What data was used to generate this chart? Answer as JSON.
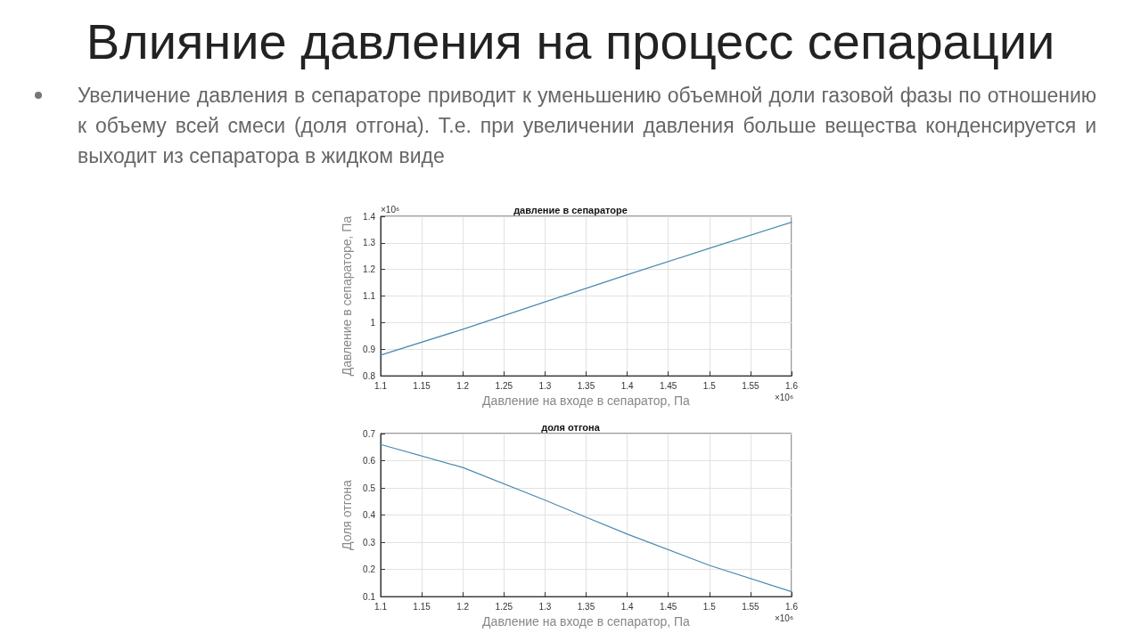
{
  "chart_data": [
    {
      "type": "other",
      "title": "Влияние давления на процесс сепарации",
      "subtitle": "Увеличение давления в сепараторе приводит к уменьшению объемной доли газовой фазы по отношению к объему всей смеси (доля отгона). Т.е. при увеличении давления больше вещества конденсируется и выходит из сепаратора в жидком виде"
    },
    {
      "type": "line",
      "title": "давление в сепараторе",
      "xlabel": "Давление на входе в сепаратор, Па",
      "ylabel": "Давление в сепараторе, Па",
      "x": [
        1.1,
        1.2,
        1.3,
        1.4,
        1.5,
        1.6
      ],
      "series": [
        {
          "color": "#4a8ab0",
          "values": [
            0.878,
            0.975,
            1.078,
            1.18,
            1.28,
            1.378
          ]
        }
      ],
      "xlim": [
        1.1,
        1.6
      ],
      "xticks": [
        1.1,
        1.15,
        1.2,
        1.25,
        1.3,
        1.35,
        1.4,
        1.45,
        1.5,
        1.55,
        1.6
      ],
      "ylim": [
        0.8,
        1.4
      ],
      "yticks": [
        0.8,
        0.9,
        1,
        1.1,
        1.2,
        1.3,
        1.4
      ],
      "grid": true,
      "marker": "none",
      "line_style": "solid",
      "annotations": [
        "×10⁶",
        "×10⁶"
      ]
    },
    {
      "type": "line",
      "title": "доля отгона",
      "xlabel": "Давление на входе в сепаратор, Па",
      "ylabel": "Доля отгона",
      "x": [
        1.1,
        1.2,
        1.3,
        1.35,
        1.4,
        1.5,
        1.6
      ],
      "series": [
        {
          "color": "#4a8ab0",
          "values": [
            0.66,
            0.575,
            0.455,
            0.392,
            0.33,
            0.215,
            0.118
          ]
        }
      ],
      "xlim": [
        1.1,
        1.6
      ],
      "xticks": [
        1.1,
        1.15,
        1.2,
        1.25,
        1.3,
        1.35,
        1.4,
        1.45,
        1.5,
        1.55,
        1.6
      ],
      "ylim": [
        0.1,
        0.7
      ],
      "yticks": [
        0.1,
        0.2,
        0.3,
        0.4,
        0.5,
        0.6,
        0.7
      ],
      "grid": true,
      "marker": "none",
      "line_style": "solid",
      "annotations": [
        "×10⁶"
      ]
    }
  ]
}
